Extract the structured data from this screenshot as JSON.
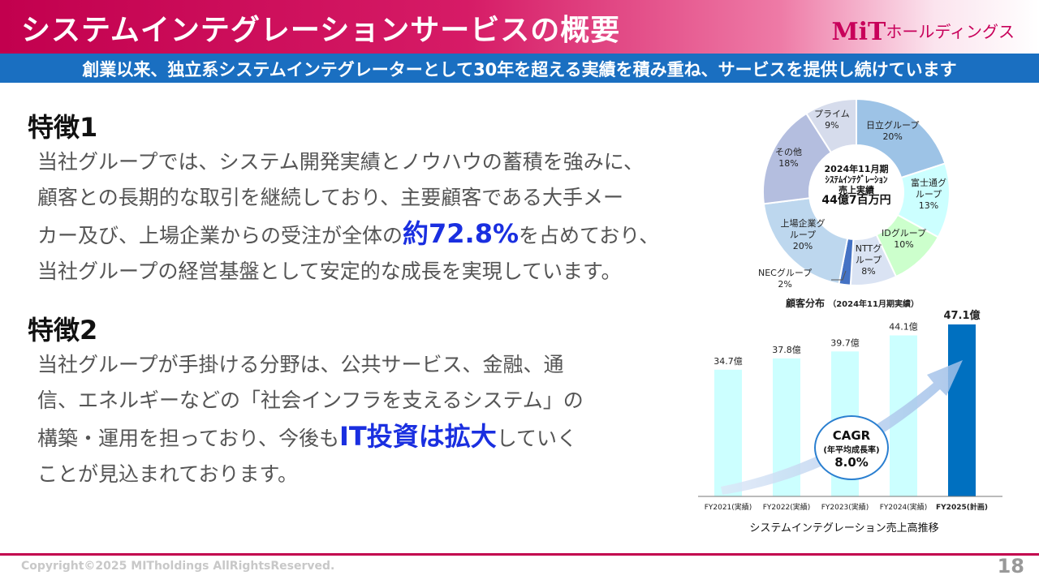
{
  "header": {
    "title": "システムインテグレーションサービスの概要",
    "logo_mit": "MiT",
    "logo_text": "ホールディングス",
    "subtitle": "創業以来、独立系システムインテグレーターとして30年を超える実績を積み重ね、サービスを提供し続けています"
  },
  "feature1": {
    "title": "特徴1",
    "lines": [
      "当社グループでは、システム開発実績とノウハウの蓄積を強みに、",
      "顧客との長期的な取引を継続しており、主要顧客である大手メー",
      "カー及び、上場企業からの受注が全体の",
      "約72.8%",
      "を占めており、",
      "当社グループの経営基盤として安定的な成長を実現しています。"
    ]
  },
  "feature2": {
    "title": "特徴2",
    "lines": [
      "当社グループが手掛ける分野は、公共サービス、金融、通",
      "信、エネルギーなどの「社会インフラを支えるシステム」の",
      "構築・運用を担っており、今後も",
      "IT投資は拡大",
      "していく",
      "ことが見込まれております。"
    ]
  },
  "chart_data": [
    {
      "type": "pie",
      "title": "顧客分布",
      "subtitle": "（2024年11月期実績）",
      "center_text": [
        "2024年11月期",
        "ｼｽﾃﾑｲﾝﾃｸﾞﾚｰｼｮﾝ",
        "売上実績"
      ],
      "center_amount": "44億7百万円",
      "slices": [
        {
          "label": "日立グループ",
          "value": 20,
          "value_label": "20%",
          "color": "#9dc3e6"
        },
        {
          "label": "富士通グループ",
          "value": 13,
          "value_label": "13%",
          "color": "#ccffff"
        },
        {
          "label": "IDグループ",
          "value": 10,
          "value_label": "10%",
          "color": "#ccffcc"
        },
        {
          "label": "NTTグループ",
          "value": 8,
          "value_label": "8%",
          "color": "#dae3f3"
        },
        {
          "label": "NECグループ",
          "value": 2,
          "value_label": "2%",
          "color": "#4472c4"
        },
        {
          "label": "上場企業グループ",
          "value": 20,
          "value_label": "20%",
          "color": "#bdd7ee"
        },
        {
          "label": "その他",
          "value": 18,
          "value_label": "18%",
          "color": "#b4bedf"
        },
        {
          "label": "プライム",
          "value": 9,
          "value_label": "9%",
          "color": "#d6dcec"
        }
      ]
    },
    {
      "type": "bar",
      "title": "システムインテグレーション売上高推移",
      "categories": [
        "FY2021(実績)",
        "FY2022(実績)",
        "FY2023(実績)",
        "FY2024(実績)",
        "FY2025(計画)"
      ],
      "values": [
        34.7,
        37.8,
        39.7,
        44.1,
        47.1
      ],
      "value_labels": [
        "34.7億",
        "37.8億",
        "39.7億",
        "44.1億",
        "47.1億"
      ],
      "colors": [
        "#ccffff",
        "#ccffff",
        "#ccffff",
        "#ccffff",
        "#0070c0"
      ],
      "ylim": [
        0,
        47.1
      ],
      "annotation": {
        "title": "CAGR",
        "subtitle": "(年平均成長率)",
        "value": "8.0%"
      }
    }
  ],
  "footer": {
    "copyright": "Copyright©2025 MITholdings AllRightsReserved.",
    "page": "18"
  }
}
